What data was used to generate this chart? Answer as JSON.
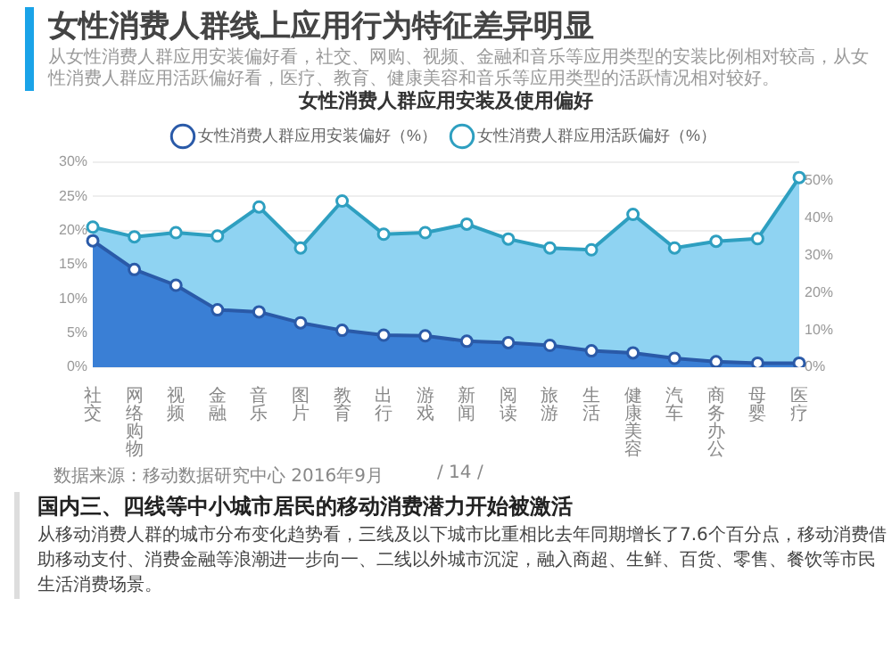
{
  "chart_data": {
    "type": "area",
    "title": "女性消费人群应用安装及使用偏好",
    "subtitle": "女性消费人群线上应用行为特征差异明显",
    "annotations": [
      "从女性消费人群应用安装偏好看，社交、网购、视频、金融和音乐等应用类型的安装比例相对较高，从女性消费人群应用活跃偏好看，医疗、教育、健康美容和音乐等应用类型的活跃情况相对较好。",
      "数据来源：移动数据研究中心 2016年9月",
      "/ 14 /",
      "国内三、四线等中小城市居民的移动消费潜力开始被激活",
      "从移动消费人群的城市分布变化趋势看，三线及以下城市比重相比去年同期增长了7.6个百分点，移动消费借助移动支付、消费金融等浪潮进一步向一、二线以外城市沉淀，融入商超、生鲜、百货、零售、餐饮等市民生活消费场景。"
    ],
    "categories": [
      "社交",
      "网络购物",
      "视频",
      "金融",
      "音乐",
      "图片",
      "教育",
      "出行",
      "游戏",
      "新闻",
      "阅读",
      "旅游",
      "生活",
      "健康美容",
      "汽车",
      "商务办公",
      "母婴",
      "医疗"
    ],
    "series": [
      {
        "name": "女性消费人群应用安装偏好（%）",
        "color": "#3a7fd5",
        "values": [
          18.5,
          14.3,
          12.0,
          8.4,
          8.1,
          6.5,
          5.4,
          4.7,
          4.6,
          3.8,
          3.6,
          3.2,
          2.4,
          2.1,
          1.3,
          0.8,
          0.6,
          0.6
        ]
      },
      {
        "name": "女性消费人群应用活跃偏好（%）",
        "color": "#8fd3f2",
        "axis": "y2",
        "values": [
          37.6,
          35.0,
          36.1,
          35.2,
          43.0,
          32.0,
          44.6,
          35.7,
          36.1,
          38.4,
          34.4,
          32.0,
          31.5,
          41.0,
          32.0,
          33.8,
          34.5,
          50.9
        ]
      }
    ],
    "ylim": [
      0,
      30
    ],
    "yticks": [
      {
        "value": 0,
        "label": "0%"
      },
      {
        "value": 5,
        "label": "5%"
      },
      {
        "value": 10,
        "label": "10%"
      },
      {
        "value": 15,
        "label": "15%"
      },
      {
        "value": 20,
        "label": "20%"
      },
      {
        "value": 25,
        "label": "25%"
      },
      {
        "value": 30,
        "label": "30%"
      }
    ],
    "y2lim": [
      0,
      55
    ],
    "y2ticks": [
      {
        "value": 0,
        "label": "0%"
      },
      {
        "value": 10,
        "label": "10%"
      },
      {
        "value": 20,
        "label": "20%"
      },
      {
        "value": 30,
        "label": "30%"
      },
      {
        "value": 40,
        "label": "40%"
      },
      {
        "value": 50,
        "label": "50%"
      }
    ],
    "grid": "y",
    "legend": "top",
    "marker": "circle"
  }
}
